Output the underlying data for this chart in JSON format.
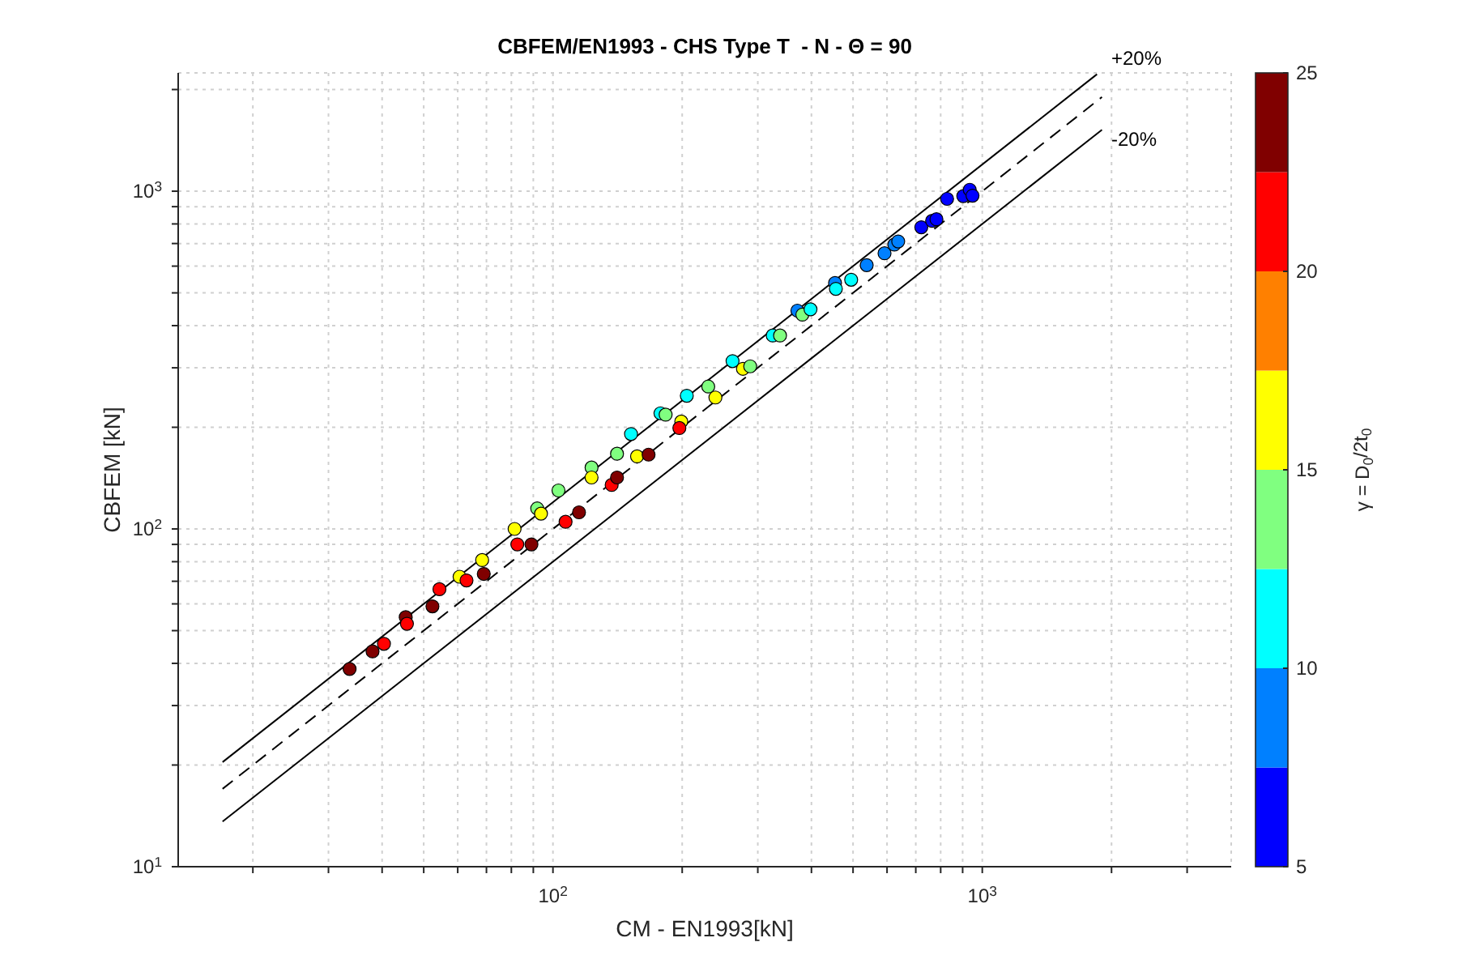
{
  "chart_data": {
    "type": "scatter",
    "title": "CBFEM/EN1993 - CHS Type T  - N - Θ = 90",
    "xlabel": "CM - EN1993[kN]",
    "ylabel": "CBFEM [kN]",
    "clabel": "γ = D$_{0}$/2t$_{0}$",
    "log": "xy",
    "grid": true,
    "legend": false,
    "marker": "circle",
    "xlim": [
      13.4,
      3800
    ],
    "ylim": [
      10,
      2240
    ],
    "xticks": [
      {
        "value": 20,
        "label": null
      },
      {
        "value": 30,
        "label": null
      },
      {
        "value": 40,
        "label": null
      },
      {
        "value": 50,
        "label": null
      },
      {
        "value": 60,
        "label": null
      },
      {
        "value": 70,
        "label": null
      },
      {
        "value": 80,
        "label": null
      },
      {
        "value": 90,
        "label": null
      },
      {
        "value": 100,
        "label": "10$^{2}$"
      },
      {
        "value": 200,
        "label": null
      },
      {
        "value": 300,
        "label": null
      },
      {
        "value": 400,
        "label": null
      },
      {
        "value": 500,
        "label": null
      },
      {
        "value": 600,
        "label": null
      },
      {
        "value": 700,
        "label": null
      },
      {
        "value": 800,
        "label": null
      },
      {
        "value": 900,
        "label": null
      },
      {
        "value": 1000,
        "label": "10$^{3}$"
      },
      {
        "value": 2000,
        "label": null
      },
      {
        "value": 3000,
        "label": null
      }
    ],
    "yticks": [
      {
        "value": 10,
        "label": "10$^{1}$"
      },
      {
        "value": 20,
        "label": null
      },
      {
        "value": 30,
        "label": null
      },
      {
        "value": 40,
        "label": null
      },
      {
        "value": 50,
        "label": null
      },
      {
        "value": 60,
        "label": null
      },
      {
        "value": 70,
        "label": null
      },
      {
        "value": 80,
        "label": null
      },
      {
        "value": 90,
        "label": null
      },
      {
        "value": 100,
        "label": "10$^{2}$"
      },
      {
        "value": 200,
        "label": null
      },
      {
        "value": 300,
        "label": null
      },
      {
        "value": 400,
        "label": null
      },
      {
        "value": 500,
        "label": null
      },
      {
        "value": 600,
        "label": null
      },
      {
        "value": 700,
        "label": null
      },
      {
        "value": 800,
        "label": null
      },
      {
        "value": 900,
        "label": null
      },
      {
        "value": 1000,
        "label": "10$^{3}$"
      },
      {
        "value": 2000,
        "label": null
      }
    ],
    "clim": [
      5,
      25
    ],
    "cticks": [
      5,
      10,
      15,
      20,
      25
    ],
    "colors": [
      "#0000ff",
      "#0080ff",
      "#00ffff",
      "#80ff80",
      "#ffff00",
      "#ff8000",
      "#ff0000",
      "#800000"
    ],
    "annotations": [
      "+20%",
      "-20%"
    ],
    "series": [
      {
        "type": "line",
        "color": "#000000",
        "line_style": "solid",
        "marker": "none",
        "x": [
          17,
          1850
        ],
        "values": [
          20.4,
          2220
        ]
      },
      {
        "type": "line",
        "color": "#000000",
        "line_style": "dashed",
        "marker": "none",
        "x": [
          17,
          1900
        ],
        "values": [
          17,
          1900
        ]
      },
      {
        "type": "line",
        "color": "#000000",
        "line_style": "solid",
        "marker": "none",
        "x": [
          17,
          1900
        ],
        "values": [
          13.6,
          1520
        ]
      },
      {
        "x": [
          33.6,
          38.0,
          40.4,
          45.4,
          45.7,
          52.4,
          54.4,
          60.6,
          62.9,
          69.0,
          68.4,
          81.4,
          82.6,
          89.1,
          91.9,
          93.8,
          103,
          107,
          115,
          123,
          123,
          137,
          141,
          141,
          152,
          157,
          167,
          178,
          183,
          199,
          197,
          205,
          230,
          239,
          262,
          277,
          288,
          325,
          338,
          371,
          381,
          398,
          454,
          456,
          495,
          538,
          592,
          624,
          637,
          721,
          764,
          782,
          828,
          903,
          935,
          949
        ],
        "values": [
          38.5,
          43.4,
          45.7,
          54.8,
          52.4,
          59.0,
          66.3,
          72.2,
          70.4,
          73.6,
          80.9,
          100,
          90.0,
          90.0,
          115,
          111,
          130,
          105,
          112,
          152,
          142,
          135,
          142,
          167,
          191,
          164,
          166,
          220,
          218,
          208,
          199,
          248,
          264,
          245,
          314,
          298,
          303,
          374,
          374,
          443,
          431,
          447,
          535,
          514,
          547,
          604,
          655,
          695,
          710,
          782,
          817,
          826,
          949,
          967,
          1010,
          970
        ],
        "colors": [
          "#800000",
          "#800000",
          "#ff0000",
          "#800000",
          "#ff0000",
          "#800000",
          "#ff0000",
          "#ffff00",
          "#ff0000",
          "#800000",
          "#ffff00",
          "#ffff00",
          "#ff0000",
          "#800000",
          "#80ff80",
          "#ffff00",
          "#80ff80",
          "#ff0000",
          "#800000",
          "#80ff80",
          "#ffff00",
          "#ff0000",
          "#800000",
          "#80ff80",
          "#00ffff",
          "#ffff00",
          "#800000",
          "#00ffff",
          "#80ff80",
          "#ffff00",
          "#ff0000",
          "#00ffff",
          "#80ff80",
          "#ffff00",
          "#00ffff",
          "#ffff00",
          "#80ff80",
          "#00ffff",
          "#80ff80",
          "#0080ff",
          "#80ff80",
          "#00ffff",
          "#0080ff",
          "#00ffff",
          "#00ffff",
          "#0080ff",
          "#0080ff",
          "#0080ff",
          "#0080ff",
          "#0000ff",
          "#0000ff",
          "#0000ff",
          "#0000ff",
          "#0000ff",
          "#0000ff",
          "#0000ff"
        ]
      }
    ]
  }
}
